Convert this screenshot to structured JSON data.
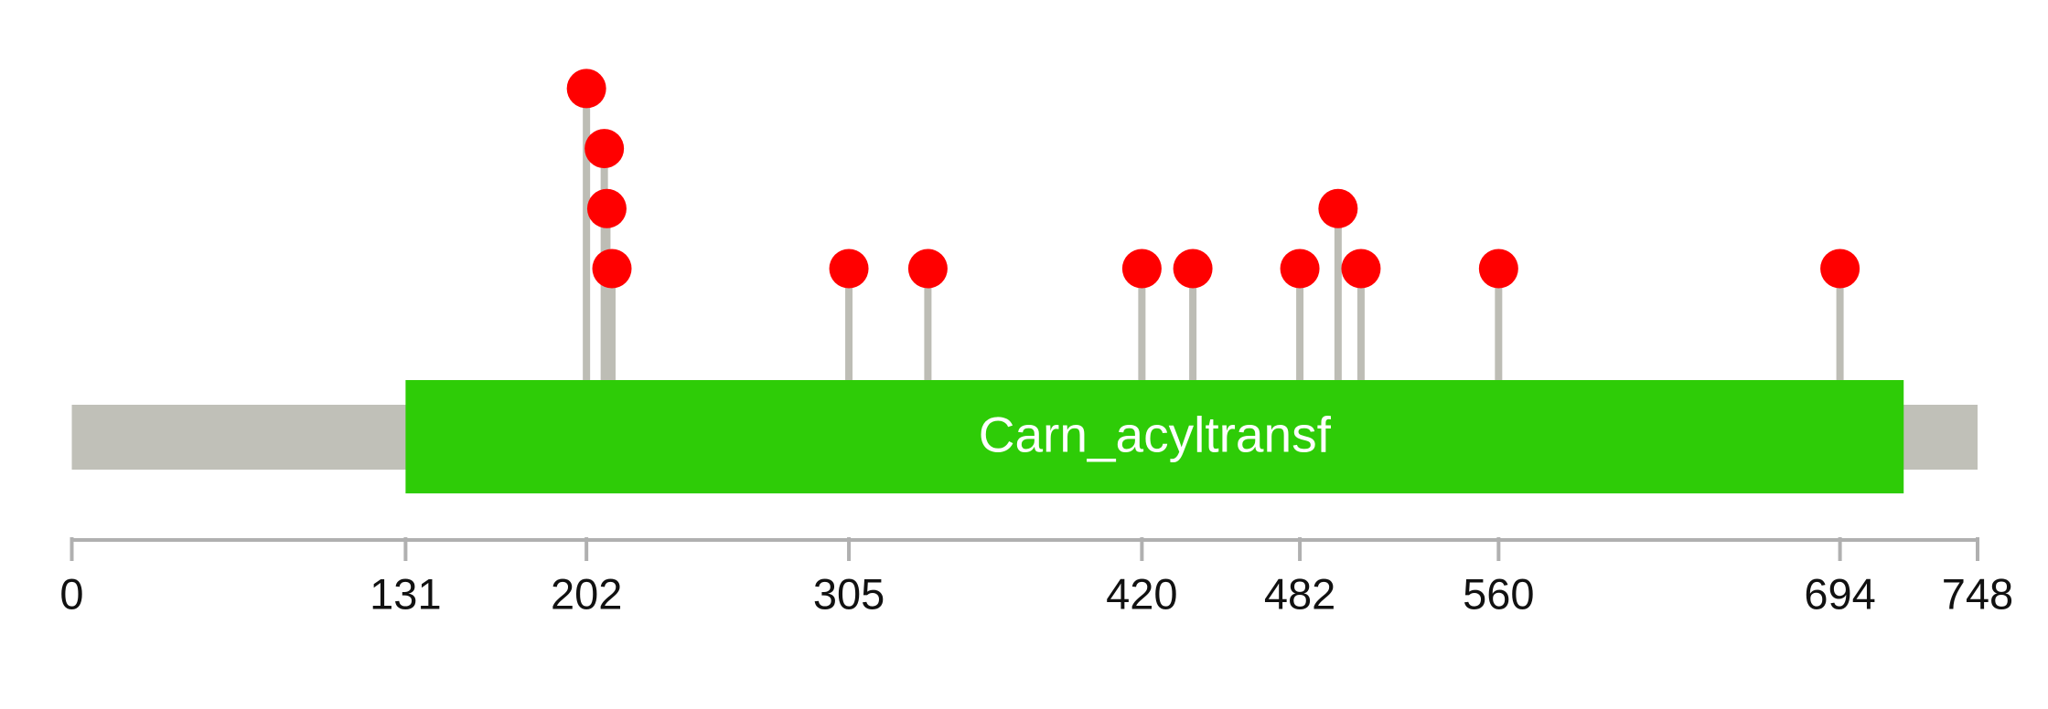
{
  "chart_data": {
    "type": "lollipop",
    "xlim": [
      0,
      748
    ],
    "xticks": [
      0,
      131,
      202,
      305,
      420,
      482,
      560,
      694,
      748
    ],
    "backbone_color": "#c0c0b8",
    "stem_color": "#bdbdb5",
    "domains": [
      {
        "name": "Carn_acyltransf",
        "start": 131,
        "end": 719,
        "color": "#2ecc07"
      }
    ],
    "x": [
      202,
      209,
      210,
      212,
      305,
      336,
      420,
      440,
      482,
      497,
      506,
      560,
      694
    ],
    "values": [
      4,
      3,
      2,
      1,
      1,
      1,
      1,
      1,
      1,
      2,
      1,
      1,
      1
    ],
    "color": "#ff0000"
  }
}
